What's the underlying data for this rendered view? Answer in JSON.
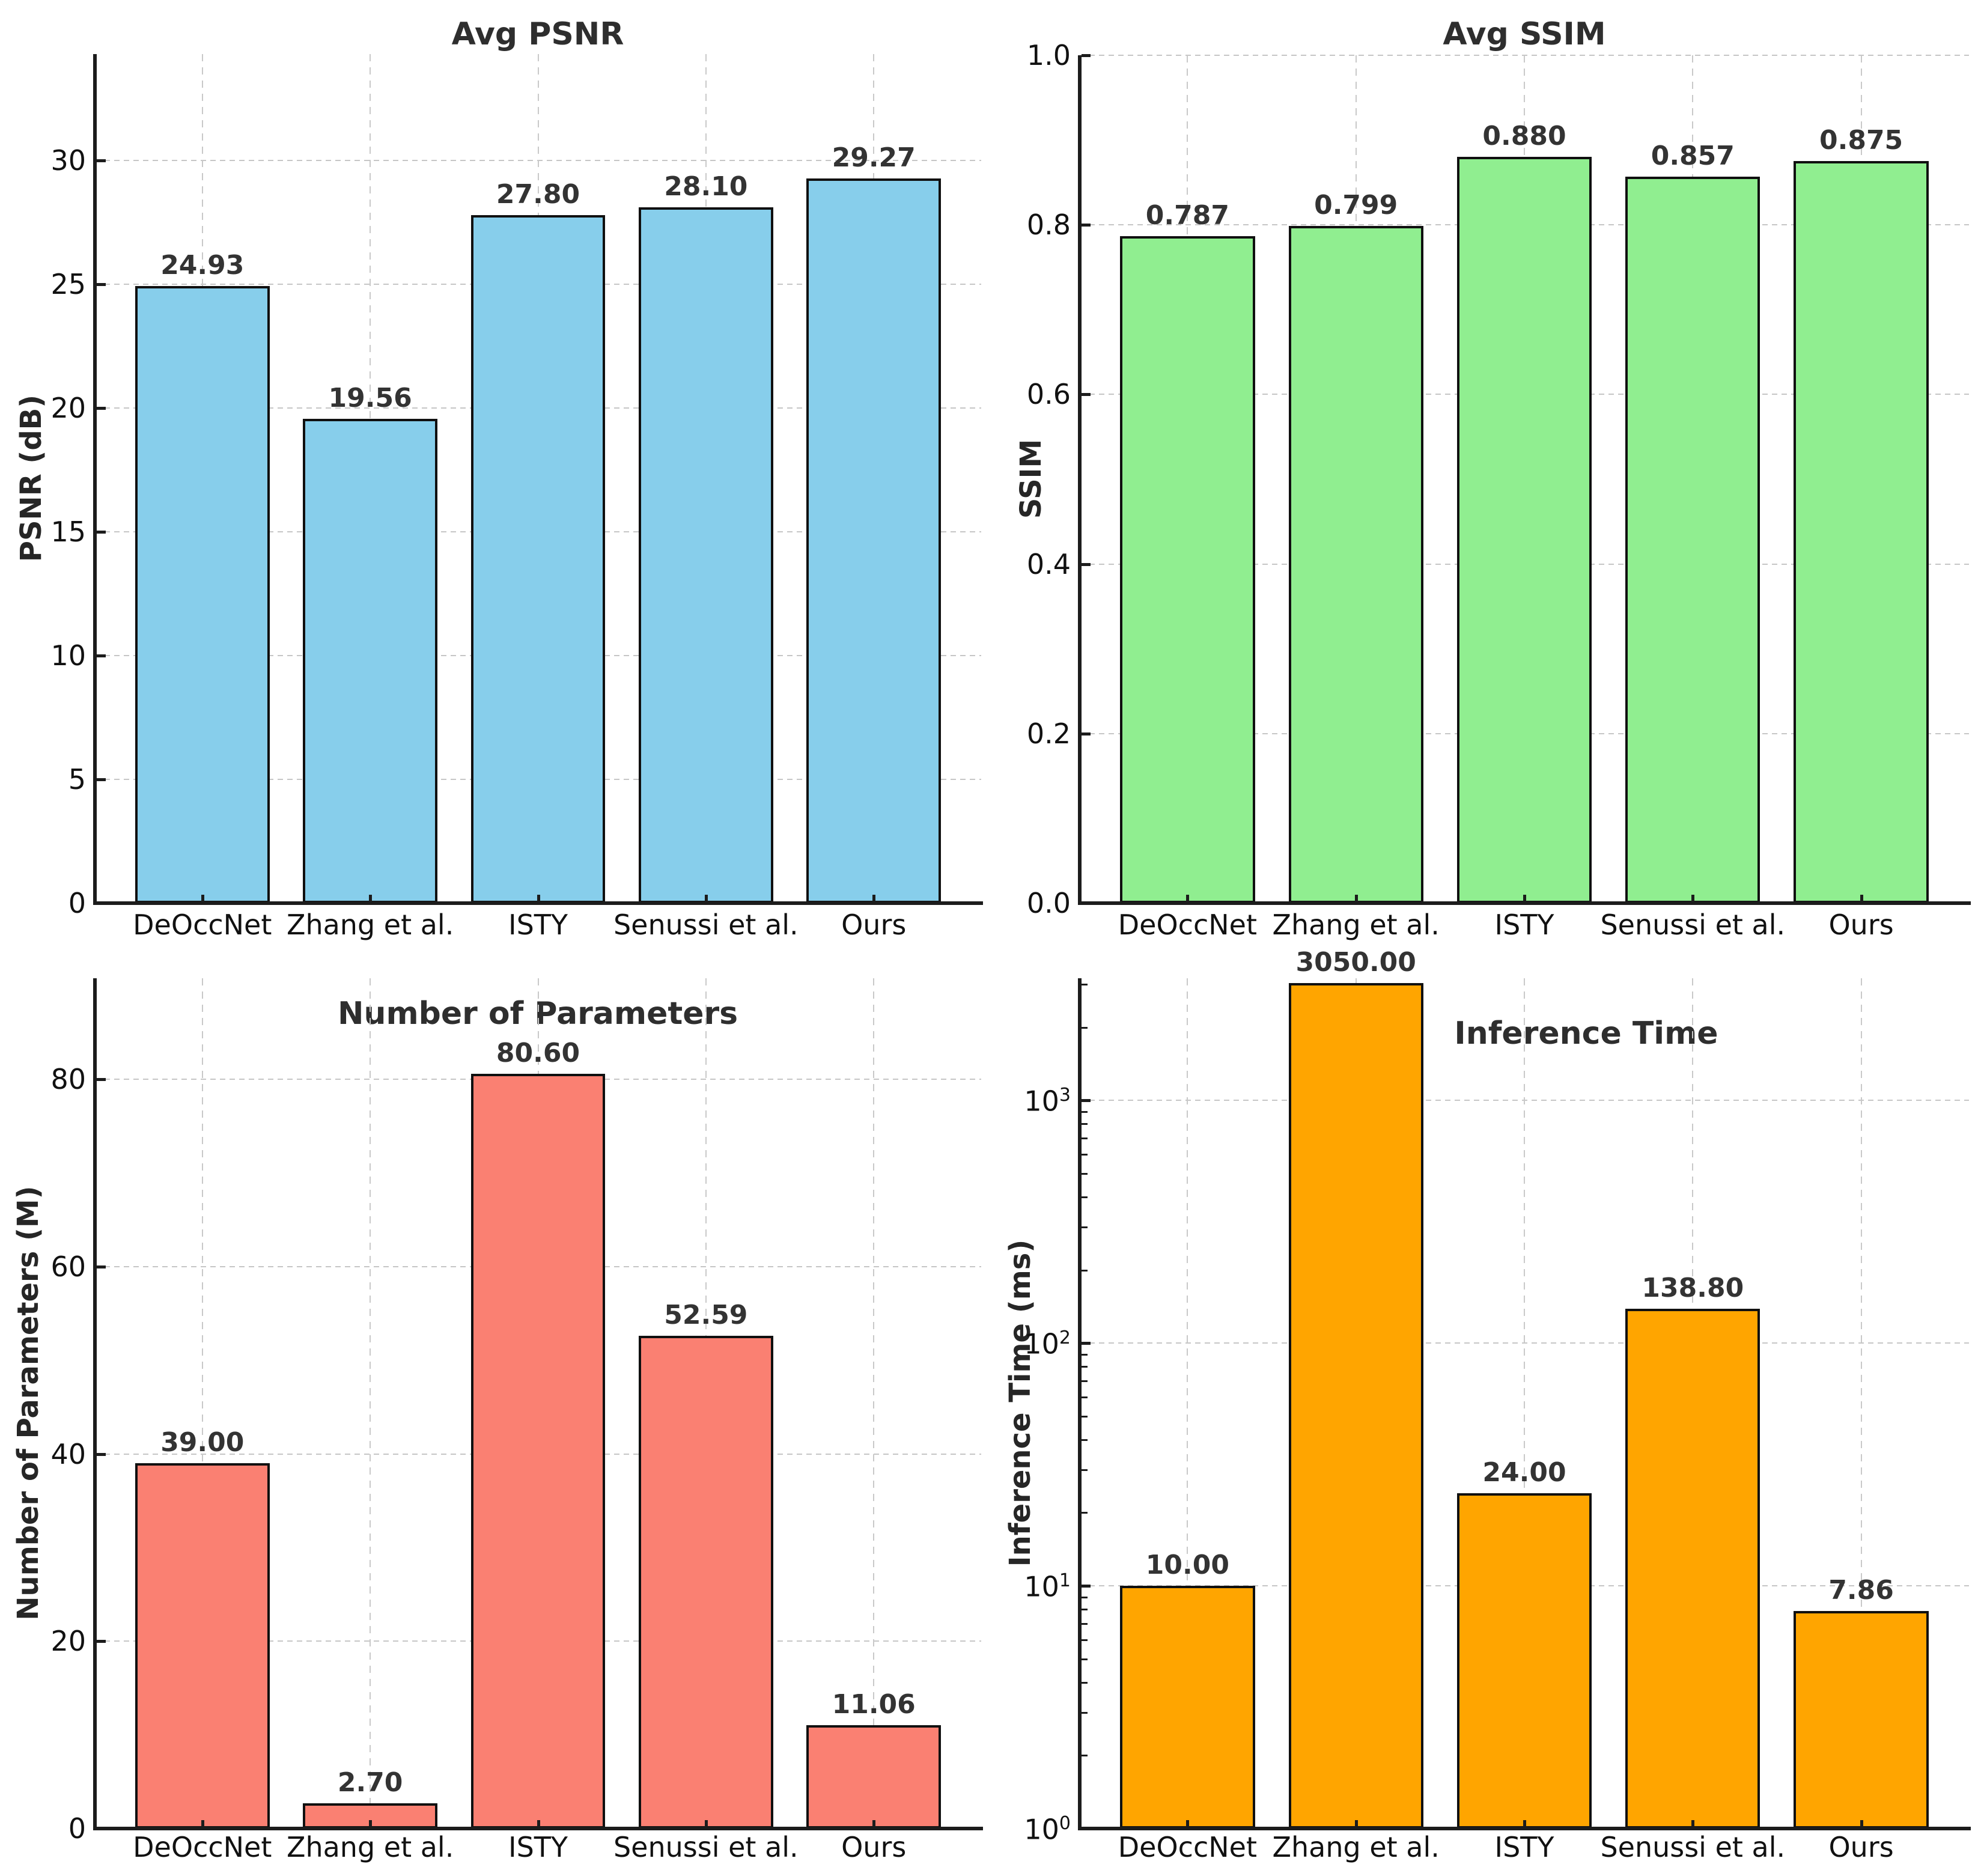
{
  "chart_data": [
    {
      "type": "bar",
      "title": "Avg PSNR",
      "ylabel": "PSNR (dB)",
      "categories": [
        "DeOccNet",
        "Zhang et al.",
        "ISTY",
        "Senussi et al.",
        "Ours"
      ],
      "values": [
        24.93,
        19.56,
        27.8,
        28.1,
        29.27
      ],
      "bar_labels": [
        "24.93",
        "19.56",
        "27.80",
        "28.10",
        "29.27"
      ],
      "bar_color": "#87CEEB",
      "yscale": "linear",
      "ylim": [
        0,
        34.3
      ],
      "yticks": [
        {
          "v": 0,
          "label": "0"
        },
        {
          "v": 5,
          "label": "5"
        },
        {
          "v": 10,
          "label": "10"
        },
        {
          "v": 15,
          "label": "15"
        },
        {
          "v": 20,
          "label": "20"
        },
        {
          "v": 25,
          "label": "25"
        },
        {
          "v": 30,
          "label": "30"
        }
      ],
      "grid": true,
      "legend": "none"
    },
    {
      "type": "bar",
      "title": "Avg SSIM",
      "ylabel": "SSIM",
      "categories": [
        "DeOccNet",
        "Zhang et al.",
        "ISTY",
        "Senussi et al.",
        "Ours"
      ],
      "values": [
        0.787,
        0.799,
        0.88,
        0.857,
        0.875
      ],
      "bar_labels": [
        "0.787",
        "0.799",
        "0.880",
        "0.857",
        "0.875"
      ],
      "bar_color": "#90EE90",
      "yscale": "linear",
      "ylim": [
        0,
        1.0
      ],
      "yticks": [
        {
          "v": 0.0,
          "label": "0.0"
        },
        {
          "v": 0.2,
          "label": "0.2"
        },
        {
          "v": 0.4,
          "label": "0.4"
        },
        {
          "v": 0.6,
          "label": "0.6"
        },
        {
          "v": 0.8,
          "label": "0.8"
        },
        {
          "v": 1.0,
          "label": "1.0"
        }
      ],
      "grid": true,
      "legend": "none"
    },
    {
      "type": "bar",
      "title": "Number of Parameters",
      "ylabel": "Number of Parameters (M)",
      "categories": [
        "DeOccNet",
        "Zhang et al.",
        "ISTY",
        "Senussi et al.",
        "Ours"
      ],
      "values": [
        39.0,
        2.7,
        80.6,
        52.59,
        11.06
      ],
      "bar_labels": [
        "39.00",
        "2.70",
        "80.60",
        "52.59",
        "11.06"
      ],
      "bar_color": "#FA8072",
      "yscale": "linear",
      "ylim": [
        0,
        90.8
      ],
      "yticks": [
        {
          "v": 0,
          "label": "0"
        },
        {
          "v": 20,
          "label": "20"
        },
        {
          "v": 40,
          "label": "40"
        },
        {
          "v": 60,
          "label": "60"
        },
        {
          "v": 80,
          "label": "80"
        }
      ],
      "grid": true,
      "legend": "none"
    },
    {
      "type": "bar",
      "title": "Inference Time",
      "ylabel": "Inference Time (ms)",
      "categories": [
        "DeOccNet",
        "Zhang et al.",
        "ISTY",
        "Senussi et al.",
        "Ours"
      ],
      "values": [
        10.0,
        3050.0,
        24.0,
        138.8,
        7.86
      ],
      "bar_labels": [
        "10.00",
        "3050.00",
        "24.00",
        "138.80",
        "7.86"
      ],
      "bar_color": "#FFA500",
      "yscale": "log",
      "ylim": [
        1,
        3185
      ],
      "yticks": [
        {
          "v": 1,
          "label": "10^0"
        },
        {
          "v": 10,
          "label": "10^1"
        },
        {
          "v": 100,
          "label": "10^2"
        },
        {
          "v": 1000,
          "label": "10^3"
        }
      ],
      "minor_ticks": [
        2,
        3,
        4,
        5,
        6,
        7,
        8,
        9,
        20,
        30,
        40,
        50,
        60,
        70,
        80,
        90,
        200,
        300,
        400,
        500,
        600,
        700,
        800,
        900,
        2000,
        3000
      ],
      "grid": true,
      "legend": "none"
    }
  ]
}
